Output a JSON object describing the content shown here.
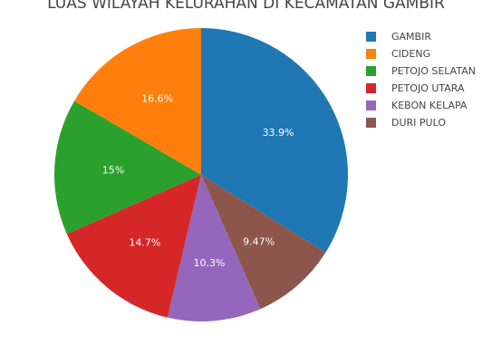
{
  "chart_data": {
    "type": "pie",
    "title": "LUAS WILAYAH KELURAHAN DI KECAMATAN GAMBIR",
    "legend_position": "right",
    "slices": [
      {
        "name": "GAMBIR",
        "value": 33.9,
        "label": "33.9%",
        "color": "#1f77b4"
      },
      {
        "name": "DURI PULO",
        "value": 9.47,
        "label": "9.47%",
        "color": "#8c564b"
      },
      {
        "name": "KEBON KELAPA",
        "value": 10.3,
        "label": "10.3%",
        "color": "#9467bd"
      },
      {
        "name": "PETOJO UTARA",
        "value": 14.7,
        "label": "14.7%",
        "color": "#d62728"
      },
      {
        "name": "PETOJO SELATAN",
        "value": 15,
        "label": "15%",
        "color": "#2ca02c"
      },
      {
        "name": "CIDENG",
        "value": 16.6,
        "label": "16.6%",
        "color": "#ff7f0e"
      }
    ],
    "legend": [
      {
        "name": "GAMBIR",
        "color": "#1f77b4"
      },
      {
        "name": "CIDENG",
        "color": "#ff7f0e"
      },
      {
        "name": "PETOJO SELATAN",
        "color": "#2ca02c"
      },
      {
        "name": "PETOJO UTARA",
        "color": "#d62728"
      },
      {
        "name": "KEBON KELAPA",
        "color": "#9467bd"
      },
      {
        "name": "DURI PULO",
        "color": "#8c564b"
      }
    ]
  }
}
